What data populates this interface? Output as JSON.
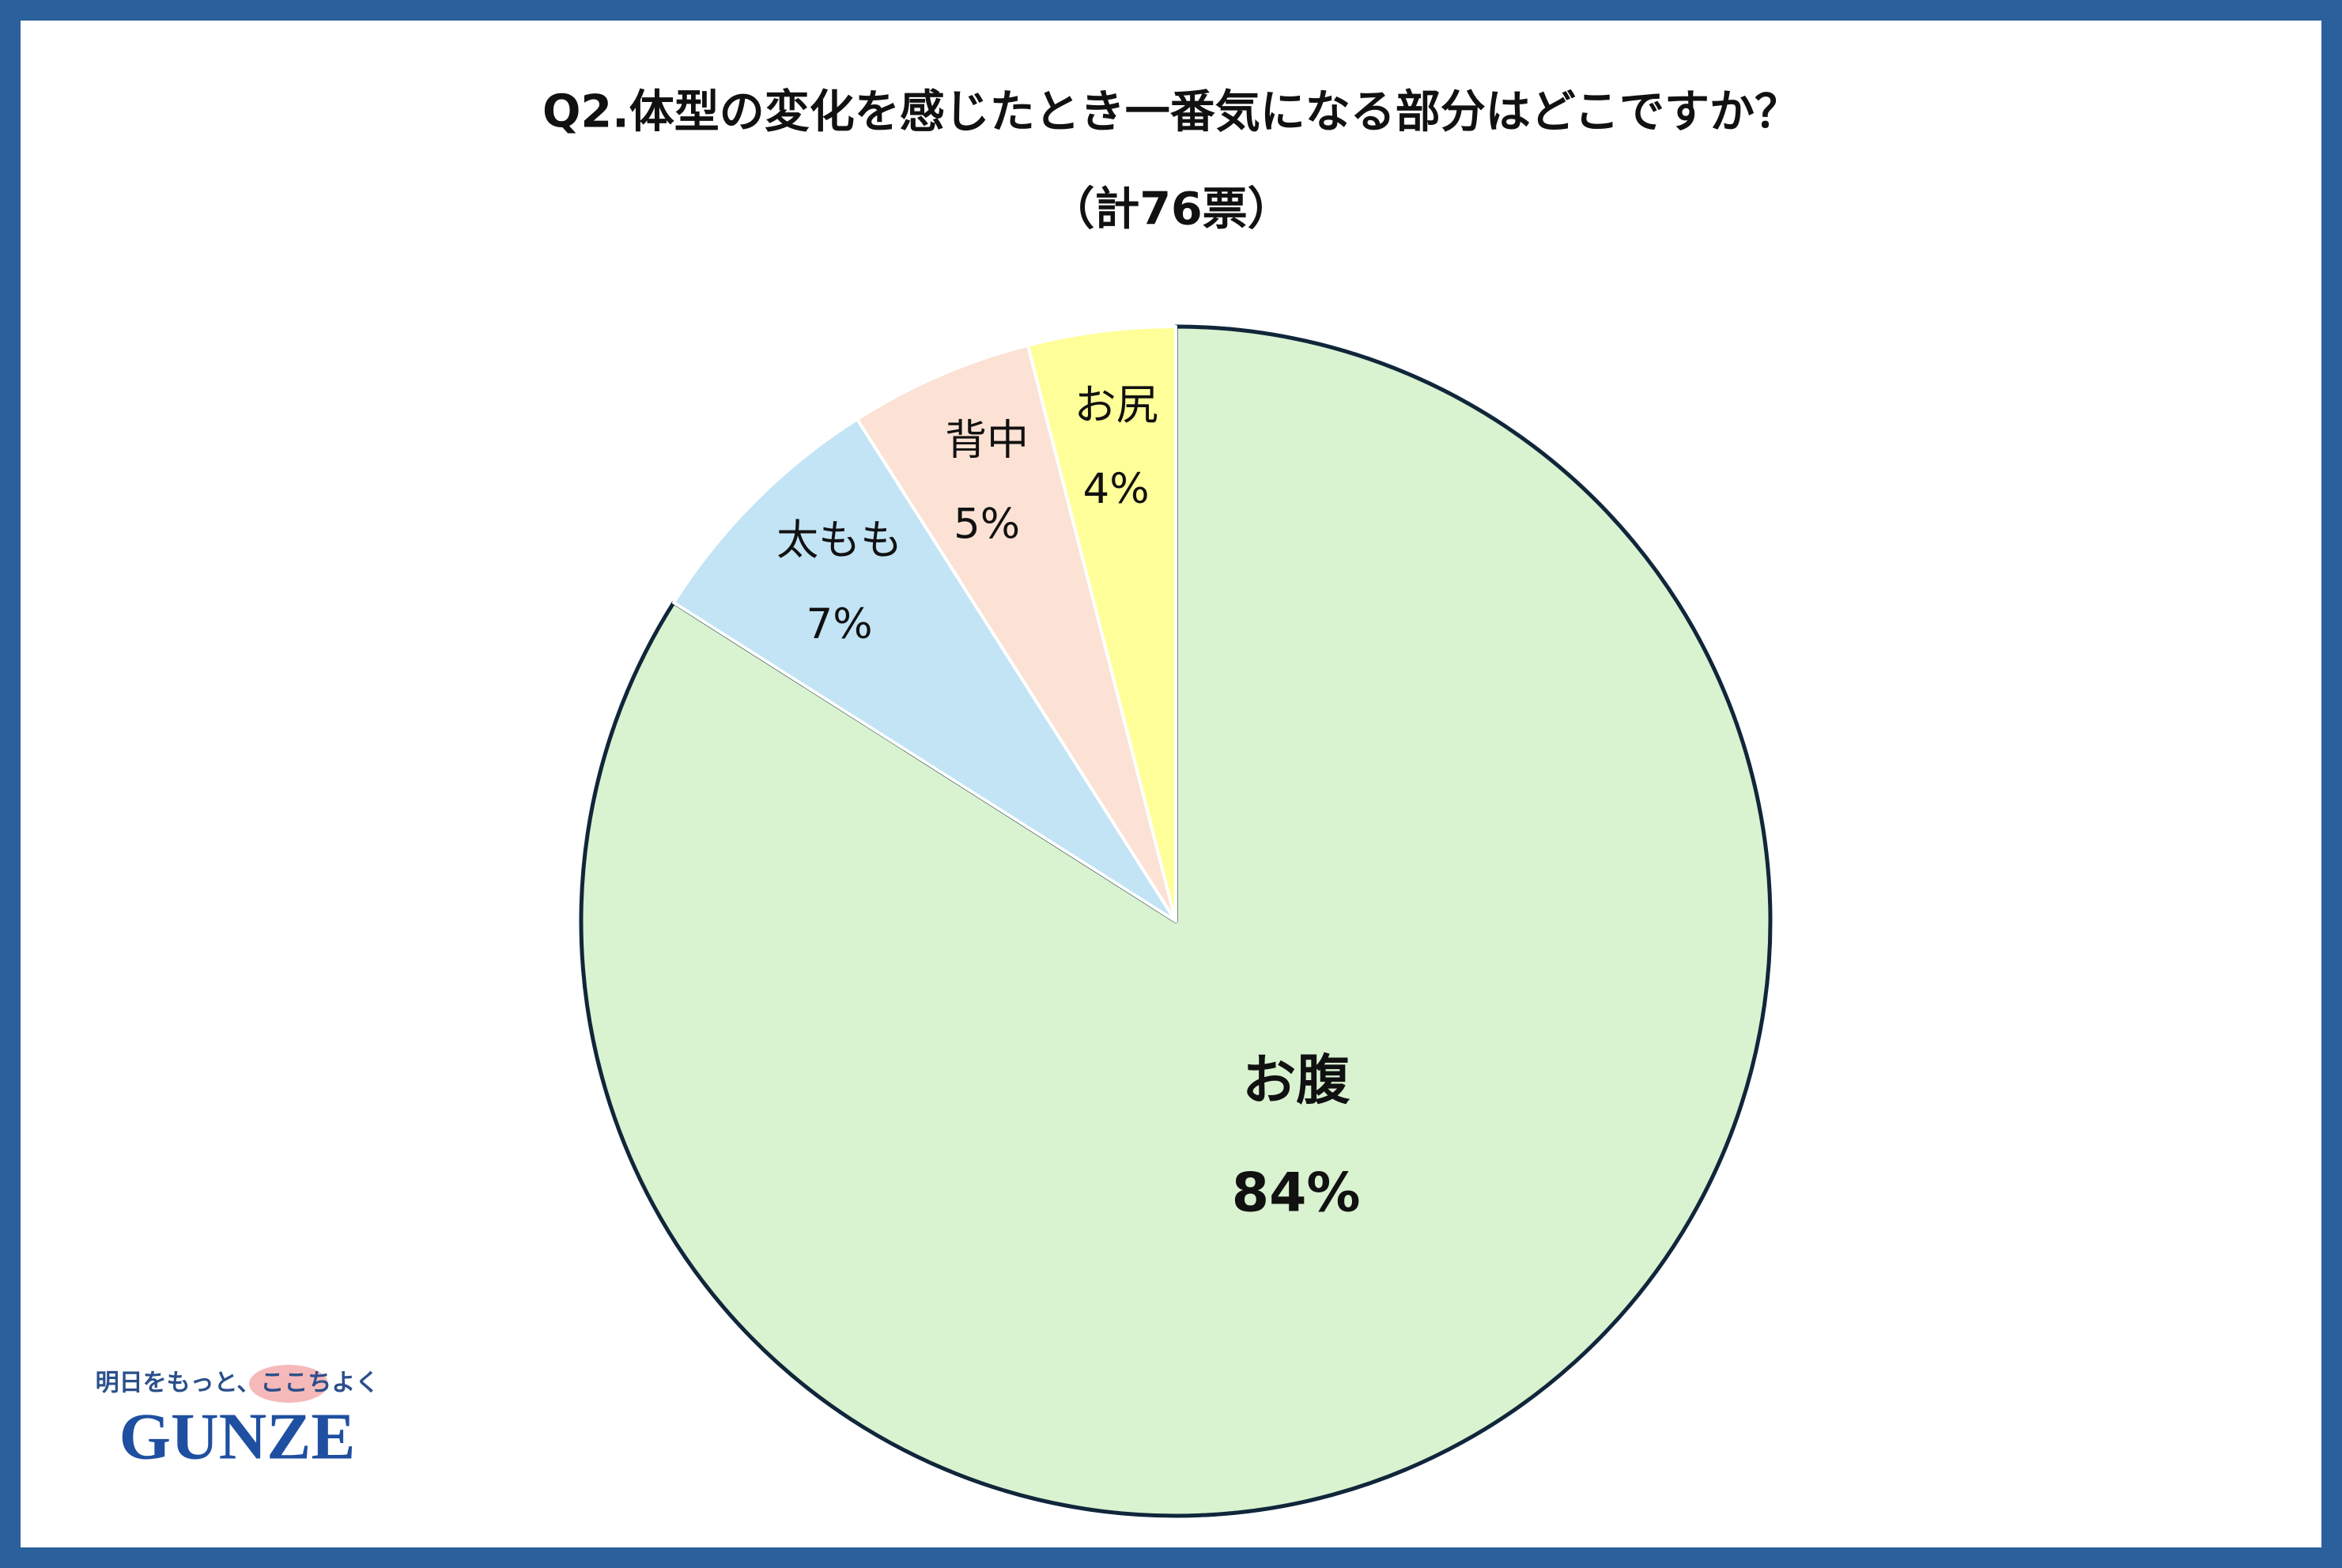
{
  "chart_data": {
    "type": "pie",
    "title": "Q2.体型の変化を感じたとき一番気になる部分はどこですか？",
    "subtitle": "（計76票）",
    "categories": [
      "お腹",
      "太もも",
      "背中",
      "お尻"
    ],
    "values": [
      84,
      7,
      5,
      4
    ],
    "value_labels": [
      "84%",
      "7%",
      "5%",
      "4%"
    ],
    "colors": [
      "#d9f2d0",
      "#c2e4f5",
      "#fbe2d5",
      "#ffff99"
    ]
  },
  "logo": {
    "tagline": "明日をもっと、ここちよく",
    "brand": "GUNZE"
  }
}
